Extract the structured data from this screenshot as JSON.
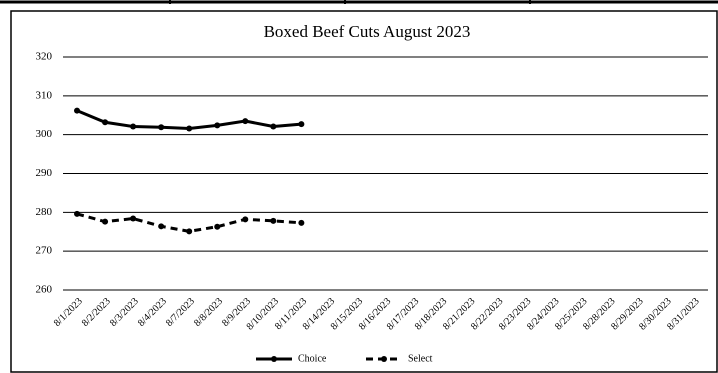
{
  "chart_data": {
    "type": "line",
    "title": "Boxed Beef Cuts August 2023",
    "categories": [
      "8/1/2023",
      "8/2/2023",
      "8/3/2023",
      "8/4/2023",
      "8/7/2023",
      "8/8/2023",
      "8/9/2023",
      "8/10/2023",
      "8/11/2023",
      "8/14/2023",
      "8/15/2023",
      "8/16/2023",
      "8/17/2023",
      "8/18/2023",
      "8/21/2023",
      "8/22/2023",
      "8/23/2023",
      "8/24/2023",
      "8/25/2023",
      "8/28/2023",
      "8/29/2023",
      "8/30/2023",
      "8/31/2023"
    ],
    "series": [
      {
        "name": "Choice",
        "color": "#000000",
        "dashed": false,
        "values": [
          306.2,
          303.2,
          302.1,
          301.9,
          301.6,
          302.4,
          303.5,
          302.1,
          302.7,
          null,
          null,
          null,
          null,
          null,
          null,
          null,
          null,
          null,
          null,
          null,
          null,
          null,
          null
        ]
      },
      {
        "name": "Select",
        "color": "#000000",
        "dashed": true,
        "values": [
          279.6,
          277.6,
          278.4,
          276.4,
          275.1,
          276.3,
          278.2,
          277.8,
          277.3,
          null,
          null,
          null,
          null,
          null,
          null,
          null,
          null,
          null,
          null,
          null,
          null,
          null,
          null
        ]
      }
    ],
    "ylim": [
      260,
      320
    ],
    "yticks": [
      260,
      270,
      280,
      290,
      300,
      310,
      320
    ],
    "grid": true,
    "legend": "bottom"
  }
}
